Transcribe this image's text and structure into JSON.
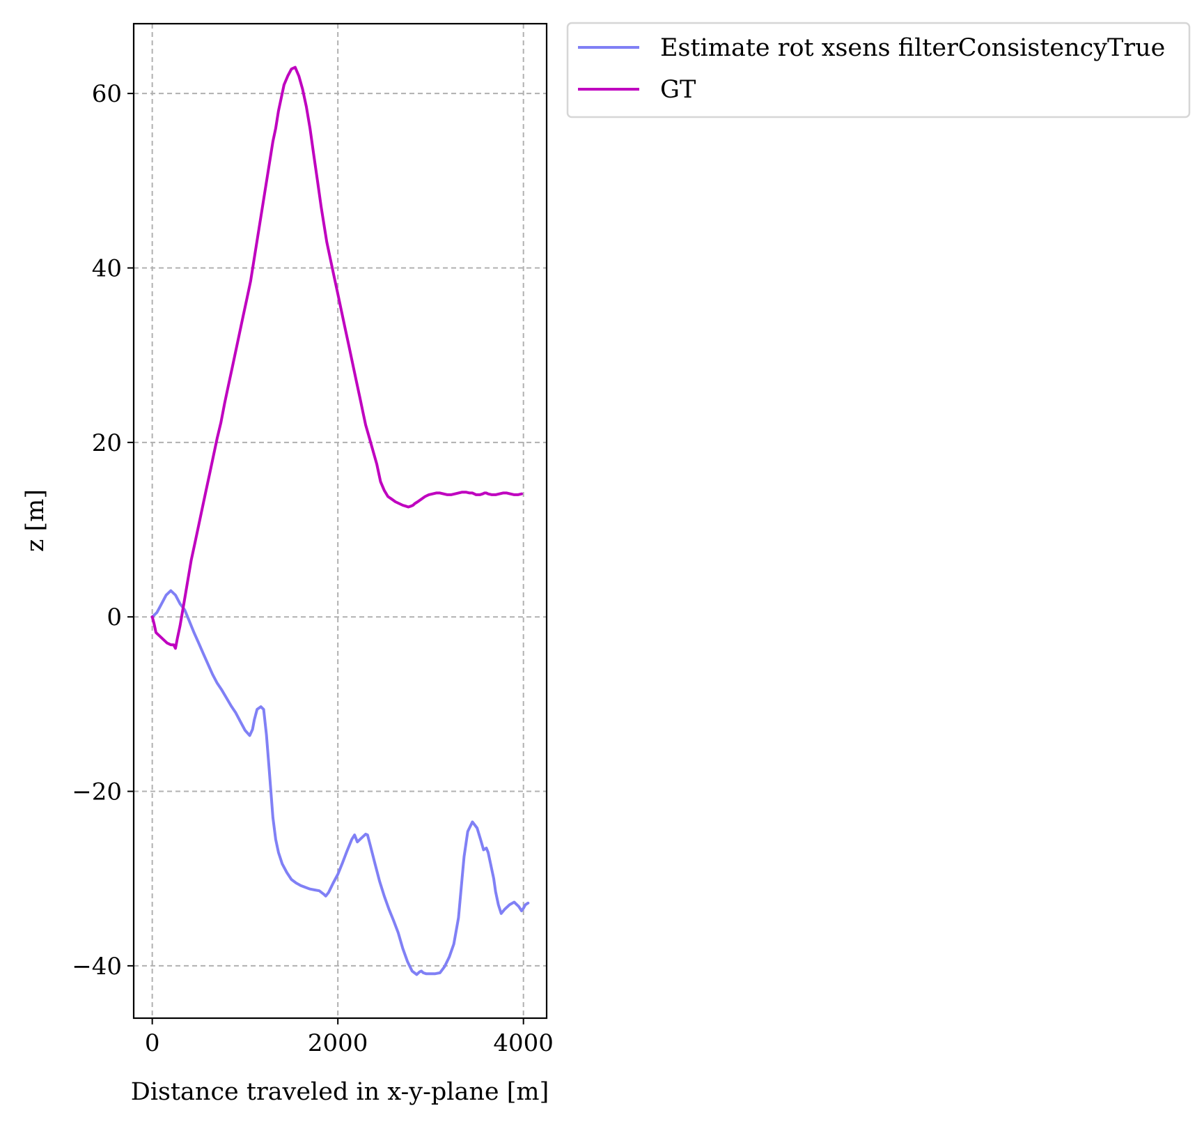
{
  "chart_data": {
    "type": "line",
    "xlabel": "Distance traveled in x-y-plane [m]",
    "ylabel": "z [m]",
    "xlim": [
      -200,
      4250
    ],
    "ylim": [
      -46,
      68
    ],
    "xticks": [
      0,
      2000,
      4000
    ],
    "yticks": [
      -40,
      -20,
      0,
      20,
      40,
      60
    ],
    "xtick_labels": [
      "0",
      "2000",
      "4000"
    ],
    "ytick_labels": [
      "−40",
      "−20",
      "0",
      "20",
      "40",
      "60"
    ],
    "grid": true,
    "legend_position": "outside-top-right",
    "series": [
      {
        "name": "Estimate rot xsens filterConsistencyTrue",
        "color": "#8080f5",
        "x": [
          0,
          50,
          100,
          150,
          200,
          250,
          300,
          350,
          400,
          450,
          500,
          550,
          600,
          650,
          700,
          750,
          800,
          850,
          900,
          950,
          1000,
          1050,
          1080,
          1100,
          1130,
          1170,
          1200,
          1230,
          1260,
          1300,
          1330,
          1360,
          1400,
          1450,
          1500,
          1550,
          1600,
          1650,
          1700,
          1750,
          1800,
          1850,
          1870,
          1900,
          1950,
          2000,
          2050,
          2100,
          2150,
          2180,
          2210,
          2250,
          2300,
          2320,
          2350,
          2400,
          2450,
          2500,
          2550,
          2600,
          2650,
          2700,
          2750,
          2800,
          2850,
          2880,
          2900,
          2920,
          2950,
          3000,
          3050,
          3100,
          3150,
          3200,
          3250,
          3300,
          3330,
          3360,
          3400,
          3450,
          3500,
          3540,
          3570,
          3600,
          3620,
          3650,
          3680,
          3700,
          3730,
          3760,
          3800,
          3850,
          3900,
          3950,
          3980,
          4000,
          4020,
          4050
        ],
        "values": [
          0,
          0.5,
          1.5,
          2.5,
          3.0,
          2.5,
          1.5,
          0.8,
          -0.5,
          -1.8,
          -3.0,
          -4.2,
          -5.4,
          -6.6,
          -7.6,
          -8.4,
          -9.3,
          -10.2,
          -11.0,
          -12.0,
          -13.0,
          -13.6,
          -12.9,
          -11.8,
          -10.6,
          -10.3,
          -10.6,
          -13.5,
          -17.5,
          -23.0,
          -25.5,
          -27.0,
          -28.3,
          -29.3,
          -30.1,
          -30.5,
          -30.8,
          -31.0,
          -31.2,
          -31.3,
          -31.4,
          -31.8,
          -32.0,
          -31.6,
          -30.5,
          -29.5,
          -28.2,
          -26.8,
          -25.5,
          -25.0,
          -25.8,
          -25.4,
          -24.9,
          -25.0,
          -26.2,
          -28.3,
          -30.3,
          -32.0,
          -33.5,
          -34.8,
          -36.2,
          -38.0,
          -39.5,
          -40.6,
          -41.0,
          -40.7,
          -40.6,
          -40.8,
          -40.9,
          -40.9,
          -40.9,
          -40.8,
          -40.1,
          -39.0,
          -37.5,
          -34.5,
          -31.0,
          -27.5,
          -24.6,
          -23.5,
          -24.2,
          -25.6,
          -26.7,
          -26.5,
          -27.0,
          -28.5,
          -30.0,
          -31.5,
          -33.0,
          -34.0,
          -33.5,
          -33.0,
          -32.7,
          -33.2,
          -33.7,
          -33.4,
          -33.0,
          -32.8
        ]
      },
      {
        "name": "GT",
        "color": "#bf00bf",
        "x": [
          0,
          20,
          40,
          80,
          120,
          160,
          200,
          230,
          250,
          270,
          300,
          340,
          380,
          420,
          460,
          500,
          540,
          580,
          620,
          660,
          700,
          740,
          780,
          820,
          860,
          900,
          940,
          980,
          1020,
          1060,
          1090,
          1120,
          1150,
          1180,
          1210,
          1240,
          1270,
          1300,
          1330,
          1360,
          1390,
          1420,
          1460,
          1500,
          1540,
          1580,
          1620,
          1660,
          1700,
          1740,
          1780,
          1820,
          1850,
          1880,
          1920,
          1960,
          2000,
          2040,
          2080,
          2120,
          2160,
          2200,
          2240,
          2270,
          2300,
          2340,
          2380,
          2420,
          2440,
          2460,
          2500,
          2540,
          2580,
          2620,
          2660,
          2700,
          2730,
          2760,
          2790,
          2810,
          2830,
          2860,
          2900,
          2940,
          2980,
          3020,
          3060,
          3100,
          3140,
          3180,
          3220,
          3260,
          3300,
          3340,
          3380,
          3420,
          3450,
          3470,
          3490,
          3510,
          3530,
          3560,
          3580,
          3600,
          3620,
          3660,
          3700,
          3740,
          3780,
          3820,
          3860,
          3900,
          3940,
          3980
        ],
        "values": [
          0,
          -0.8,
          -1.8,
          -2.2,
          -2.6,
          -3.0,
          -3.2,
          -3.2,
          -3.6,
          -2.5,
          -1.0,
          1.5,
          4.0,
          6.5,
          8.5,
          10.5,
          12.5,
          14.5,
          16.5,
          18.5,
          20.5,
          22.3,
          24.5,
          26.5,
          28.5,
          30.5,
          32.5,
          34.5,
          36.5,
          38.5,
          40.5,
          42.5,
          44.5,
          46.5,
          48.5,
          50.5,
          52.5,
          54.5,
          56.0,
          58.0,
          59.5,
          61.0,
          62.0,
          62.8,
          63.0,
          62.0,
          60.5,
          58.5,
          56.0,
          53.0,
          50.0,
          47.0,
          45.0,
          43.0,
          41.0,
          39.0,
          37.0,
          35.0,
          33.0,
          31.0,
          29.0,
          27.0,
          25.0,
          23.5,
          22.0,
          20.5,
          19.0,
          17.5,
          16.5,
          15.5,
          14.5,
          13.8,
          13.5,
          13.2,
          13.0,
          12.8,
          12.7,
          12.6,
          12.7,
          12.8,
          13.0,
          13.2,
          13.5,
          13.8,
          14.0,
          14.1,
          14.2,
          14.2,
          14.1,
          14.0,
          14.0,
          14.1,
          14.2,
          14.3,
          14.3,
          14.2,
          14.2,
          14.1,
          14.0,
          14.0,
          14.0,
          14.1,
          14.2,
          14.2,
          14.1,
          14.0,
          14.0,
          14.1,
          14.2,
          14.2,
          14.1,
          14.0,
          14.0,
          14.1
        ]
      }
    ]
  }
}
